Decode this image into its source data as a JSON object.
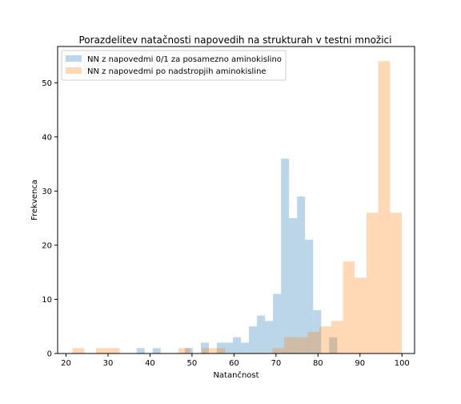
{
  "chart_data": {
    "type": "bar",
    "title": "Porazdelitev natačnosti napovedih na strukturah v testni množici",
    "xlabel": "Natančnost",
    "ylabel": "Frekvenca",
    "xlim": [
      18.0,
      103.0
    ],
    "ylim": [
      0,
      56.7
    ],
    "xticks": [
      20,
      30,
      40,
      50,
      60,
      70,
      80,
      90,
      100
    ],
    "yticks": [
      0,
      10,
      20,
      30,
      40,
      50
    ],
    "legend_position": "upper-left",
    "series": [
      {
        "name": "NN z napovedmi 0/1 za posamezno aminokislino",
        "color": "#1f77b4",
        "alpha": 0.3,
        "bin_edges": [
          19.63,
          21.54,
          23.45,
          25.36,
          27.27,
          29.18,
          31.09,
          33.0,
          34.91,
          36.82,
          38.73,
          40.64,
          42.55,
          44.46,
          46.37,
          48.28,
          50.19,
          52.1,
          54.01,
          55.92,
          57.83,
          59.74,
          61.65,
          63.56,
          65.47,
          67.38,
          69.29,
          71.2,
          73.11,
          75.02,
          76.93,
          78.84,
          80.75,
          82.66,
          84.57,
          86.48
        ],
        "counts": [
          0,
          0,
          0,
          0,
          0,
          0,
          0,
          0,
          0,
          1,
          0,
          1,
          0,
          0,
          0,
          1,
          0,
          2,
          0,
          2,
          2,
          3,
          2,
          5,
          7,
          6,
          11,
          36,
          25,
          29,
          21,
          8,
          0,
          3,
          0
        ]
      },
      {
        "name": "NN z napovedmi po nadstropjih aminokisline",
        "color": "#ff7f0e",
        "alpha": 0.3,
        "bin_edges": [
          21.55,
          24.35,
          27.15,
          29.95,
          32.75,
          35.55,
          38.35,
          41.15,
          43.95,
          46.75,
          49.55,
          52.35,
          55.15,
          57.95,
          60.75,
          63.55,
          66.35,
          69.15,
          71.95,
          74.75,
          77.55,
          80.35,
          83.15,
          85.95,
          88.75,
          91.55,
          94.35,
          97.15,
          99.95
        ],
        "counts": [
          1,
          0,
          1,
          1,
          0,
          0,
          0,
          0,
          0,
          1,
          0,
          1,
          1,
          0,
          0,
          0,
          0,
          1,
          3,
          3,
          4,
          5,
          6,
          17,
          14,
          26,
          54,
          26
        ]
      }
    ]
  }
}
